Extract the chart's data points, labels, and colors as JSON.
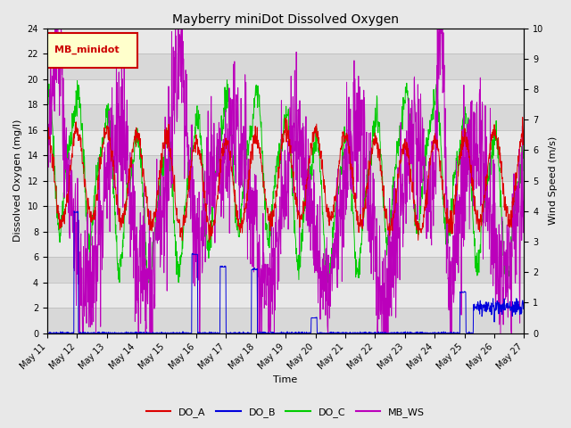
{
  "title": "Mayberry miniDot Dissolved Oxygen",
  "xlabel": "Time",
  "ylabel_left": "Dissolved Oxygen (mg/l)",
  "ylabel_right": "Wind Speed (m/s)",
  "ylim_left": [
    0,
    24
  ],
  "ylim_right": [
    0.0,
    10.0
  ],
  "yticks_left": [
    0,
    2,
    4,
    6,
    8,
    10,
    12,
    14,
    16,
    18,
    20,
    22,
    24
  ],
  "yticks_right": [
    0.0,
    1.0,
    2.0,
    3.0,
    4.0,
    5.0,
    6.0,
    7.0,
    8.0,
    9.0,
    10.0
  ],
  "colors": {
    "DO_A": "#dd0000",
    "DO_B": "#0000dd",
    "DO_C": "#00cc00",
    "MB_WS": "#bb00bb"
  },
  "legend_label": "MB_minidot",
  "legend_box_facecolor": "#ffffcc",
  "legend_box_edgecolor": "#cc0000",
  "fig_facecolor": "#e8e8e8",
  "plot_bg_light": "#e0e0e0",
  "plot_bg_dark": "#cccccc",
  "grid_line_color": "#b0b0b0",
  "x_tick_labels": [
    "May 11",
    "May 12",
    "May 13",
    "May 14",
    "May 15",
    "May 16",
    "May 17",
    "May 18",
    "May 19",
    "May 20",
    "May 21",
    "May 22",
    "May 23",
    "May 24",
    "May 25",
    "May 26",
    "May 27"
  ],
  "line_width": 0.7
}
